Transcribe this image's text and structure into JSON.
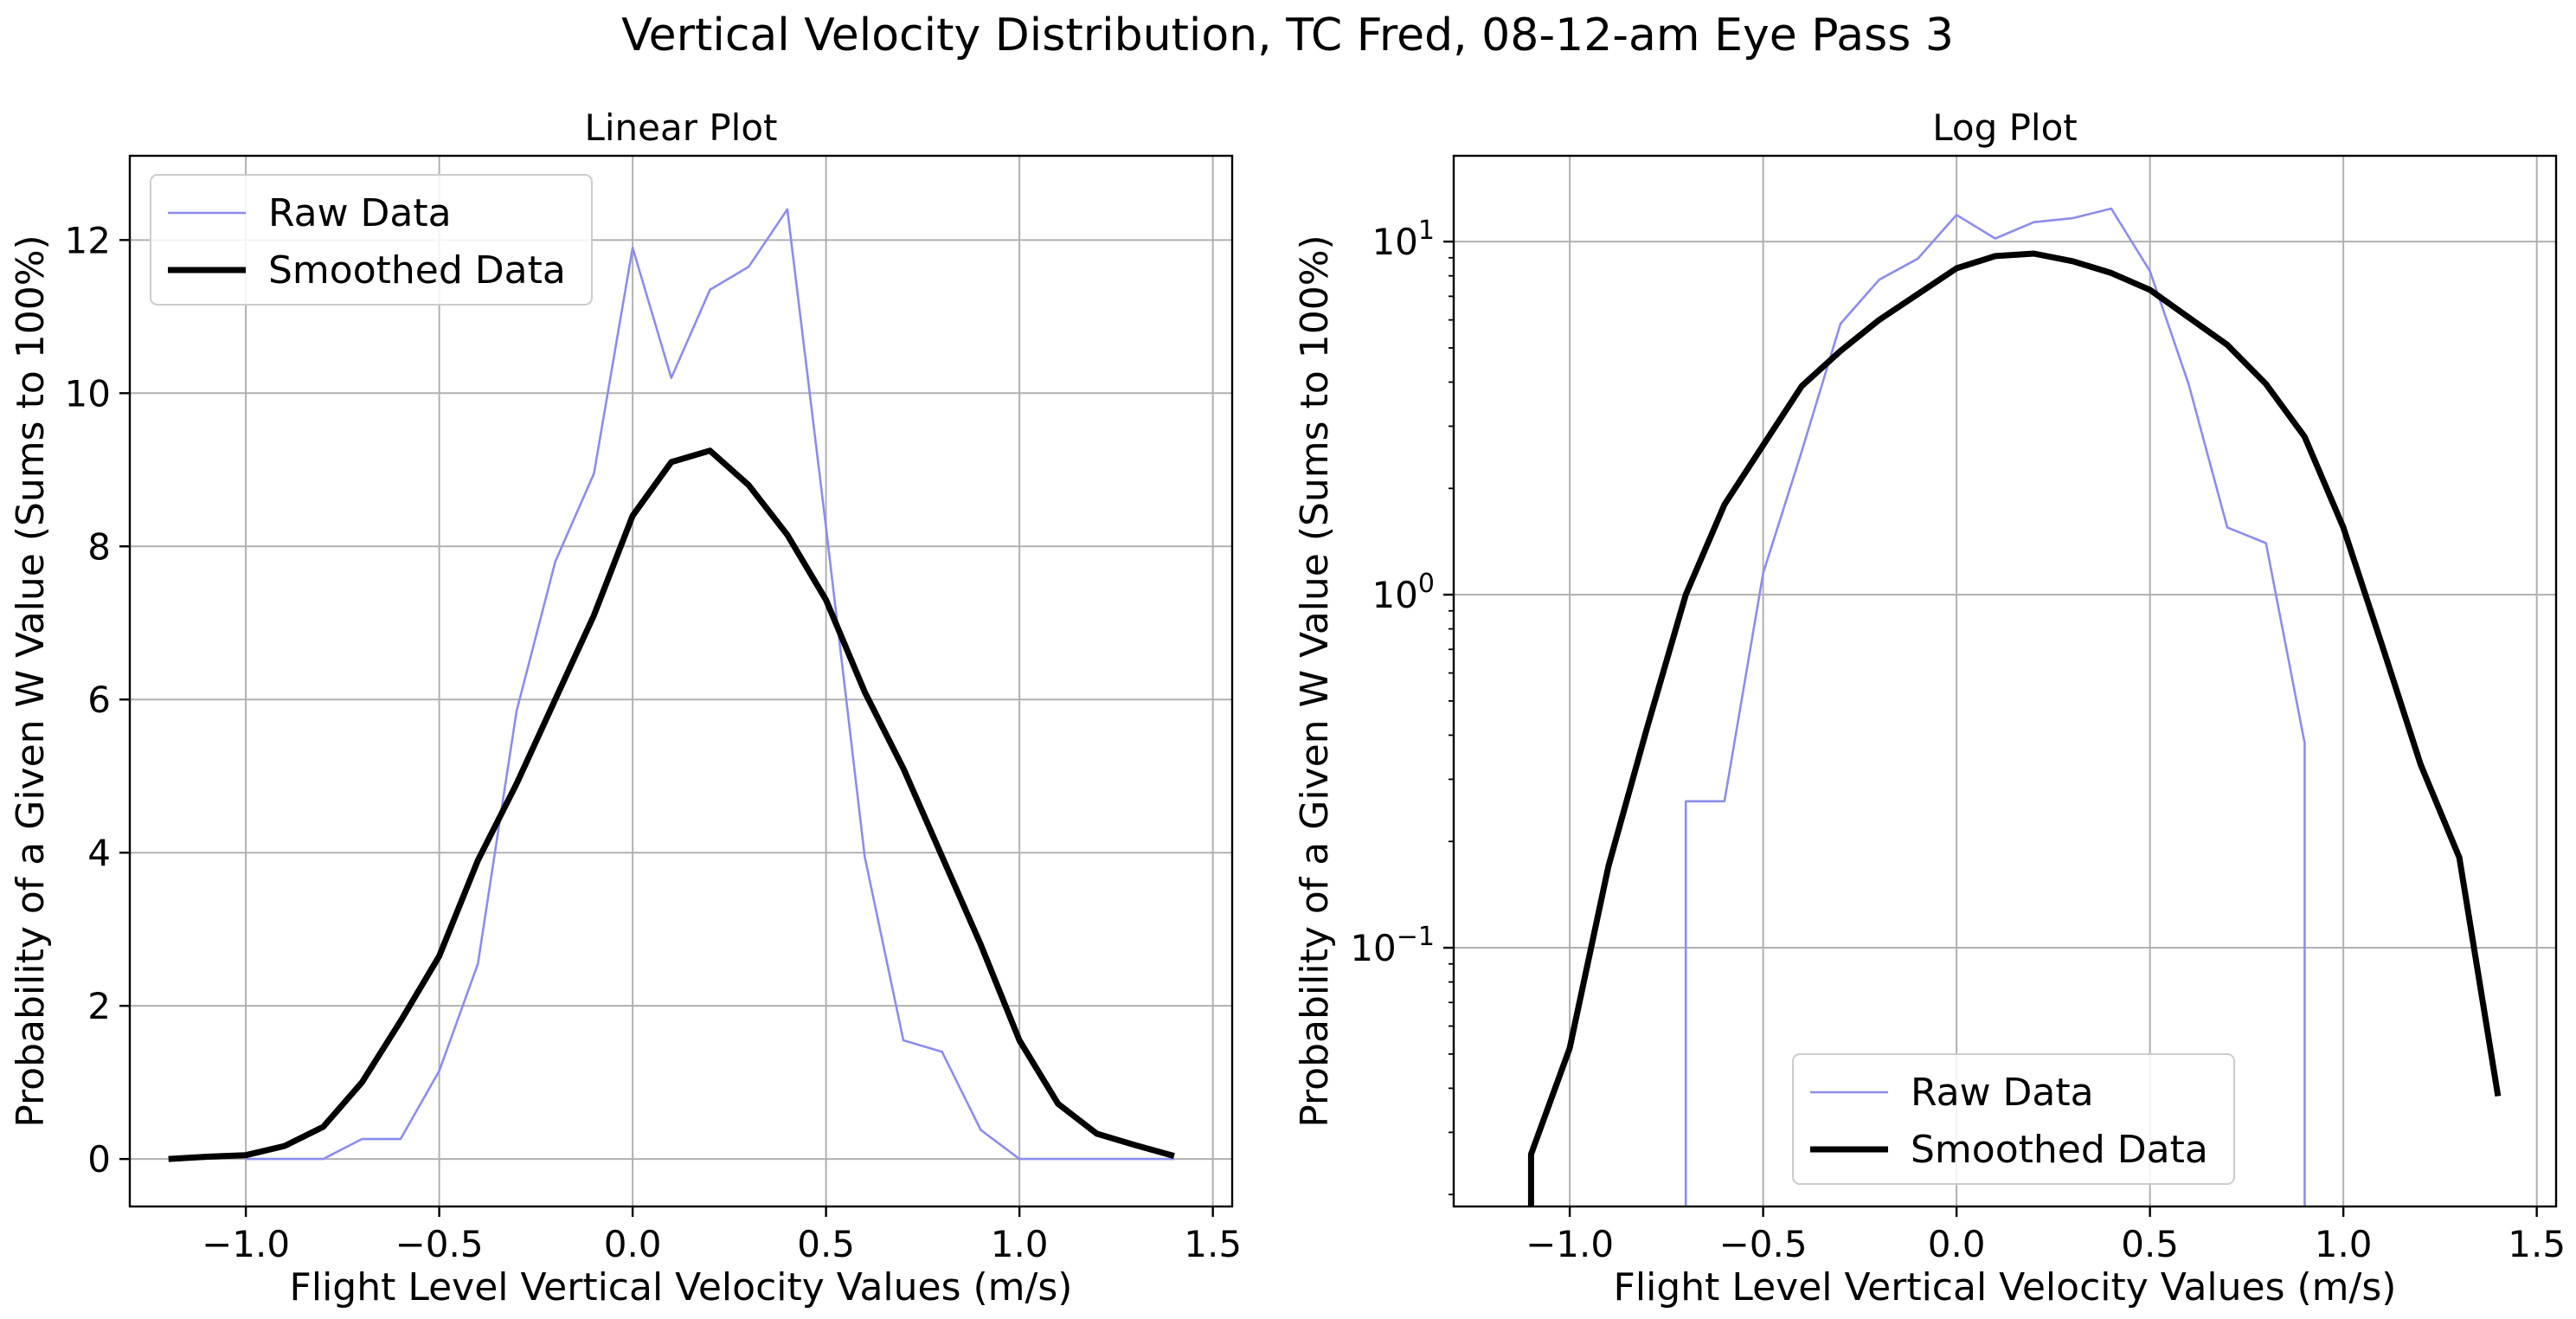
{
  "figure": {
    "suptitle": "Vertical Velocity Distribution, TC Fred, 08-12-am Eye Pass 3"
  },
  "colors": {
    "raw": "#8c8cee",
    "smoothed": "#000000",
    "grid": "#b0b0b0",
    "legend_border": "#cccccc"
  },
  "chart_data": [
    {
      "type": "line",
      "title": "Linear Plot",
      "xlabel": "Flight Level Vertical Velocity Values (m/s)",
      "ylabel": "Probability of a Given W Value (Sums to 100%)",
      "xlim": [
        -1.3,
        1.55
      ],
      "ylim": [
        -0.62,
        13.1
      ],
      "yscale": "linear",
      "grid": true,
      "legend_position": "upper left",
      "x_ticks": [
        -1.0,
        -0.5,
        0.0,
        0.5,
        1.0,
        1.5
      ],
      "x_tick_labels": [
        "−1.0",
        "−0.5",
        "0.0",
        "0.5",
        "1.0",
        "1.5"
      ],
      "y_ticks": [
        0,
        2,
        4,
        6,
        8,
        10,
        12
      ],
      "y_tick_labels": [
        "0",
        "2",
        "4",
        "6",
        "8",
        "10",
        "12"
      ],
      "series": [
        {
          "name": "Raw Data",
          "style": "thin",
          "x": [
            -1.0,
            -0.9,
            -0.8,
            -0.7,
            -0.6,
            -0.5,
            -0.4,
            -0.3,
            -0.2,
            -0.1,
            0.0,
            0.1,
            0.2,
            0.3,
            0.4,
            0.5,
            0.6,
            0.7,
            0.8,
            0.9,
            1.0,
            1.1,
            1.2,
            1.3,
            1.4
          ],
          "y": [
            0,
            0,
            0,
            0.26,
            0.26,
            1.15,
            2.55,
            5.85,
            7.8,
            8.95,
            11.9,
            10.2,
            11.35,
            11.65,
            12.4,
            8.25,
            3.95,
            1.55,
            1.4,
            0.38,
            0,
            0,
            0,
            0,
            0
          ]
        },
        {
          "name": "Smoothed Data",
          "style": "thick",
          "x": [
            -1.2,
            -1.1,
            -1.0,
            -0.9,
            -0.8,
            -0.7,
            -0.6,
            -0.5,
            -0.4,
            -0.3,
            -0.2,
            -0.1,
            0.0,
            0.1,
            0.2,
            0.3,
            0.4,
            0.5,
            0.6,
            0.7,
            0.8,
            0.9,
            1.0,
            1.1,
            1.2,
            1.3,
            1.4
          ],
          "y": [
            0.0,
            0.03,
            0.05,
            0.17,
            0.42,
            1.0,
            1.8,
            2.65,
            3.9,
            4.9,
            6.0,
            7.1,
            8.4,
            9.1,
            9.25,
            8.8,
            8.15,
            7.3,
            6.1,
            5.1,
            3.95,
            2.8,
            1.55,
            0.72,
            0.33,
            0.18,
            0.04
          ]
        }
      ]
    },
    {
      "type": "line",
      "title": "Log Plot",
      "xlabel": "Flight Level Vertical Velocity Values (m/s)",
      "ylabel": "Probability of a Given W Value (Sums to 100%)",
      "xlim": [
        -1.3,
        1.55
      ],
      "ylim": [
        0.0185,
        17.5
      ],
      "yscale": "log",
      "grid": true,
      "legend_position": "lower center",
      "x_ticks": [
        -1.0,
        -0.5,
        0.0,
        0.5,
        1.0,
        1.5
      ],
      "x_tick_labels": [
        "−1.0",
        "−0.5",
        "0.0",
        "0.5",
        "1.0",
        "1.5"
      ],
      "y_ticks": [
        0.1,
        1,
        10
      ],
      "y_tick_labels": [
        {
          "base": "10",
          "exp": "−1"
        },
        {
          "base": "10",
          "exp": "0"
        },
        {
          "base": "10",
          "exp": "1"
        }
      ],
      "series": [
        {
          "name": "Raw Data",
          "style": "thin",
          "x": [
            -0.7,
            -0.6,
            -0.5,
            -0.4,
            -0.3,
            -0.2,
            -0.1,
            0.0,
            0.1,
            0.2,
            0.3,
            0.4,
            0.5,
            0.6,
            0.7,
            0.8,
            0.9
          ],
          "y": [
            0.26,
            0.26,
            1.15,
            2.55,
            5.85,
            7.8,
            8.95,
            11.9,
            10.2,
            11.35,
            11.65,
            12.4,
            8.25,
            3.95,
            1.55,
            1.4,
            0.38
          ]
        },
        {
          "name": "Smoothed Data",
          "style": "thick",
          "x": [
            -1.1,
            -1.0,
            -0.9,
            -0.8,
            -0.7,
            -0.6,
            -0.5,
            -0.4,
            -0.3,
            -0.2,
            -0.1,
            0.0,
            0.1,
            0.2,
            0.3,
            0.4,
            0.5,
            0.6,
            0.7,
            0.8,
            0.9,
            1.0,
            1.1,
            1.2,
            1.3,
            1.4
          ],
          "y": [
            0.026,
            0.052,
            0.17,
            0.42,
            1.0,
            1.8,
            2.65,
            3.9,
            4.9,
            6.0,
            7.1,
            8.4,
            9.1,
            9.25,
            8.8,
            8.15,
            7.3,
            6.1,
            5.1,
            3.95,
            2.8,
            1.55,
            0.72,
            0.33,
            0.18,
            0.038
          ]
        }
      ]
    }
  ]
}
